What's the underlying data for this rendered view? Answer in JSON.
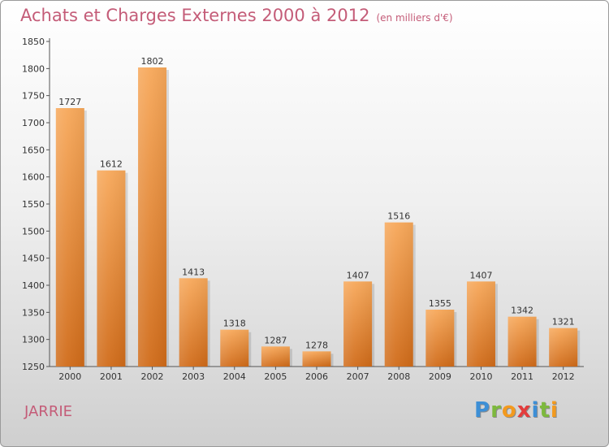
{
  "header": {
    "title": "Achats et Charges Externes 2000 à 2012",
    "subtitle": "(en milliers d'€)"
  },
  "commune": "JARRIE",
  "logo": {
    "text": "Proxiti",
    "letters": [
      {
        "ch": "P",
        "color": "#3d8fd6"
      },
      {
        "ch": "r",
        "color": "#7db93d"
      },
      {
        "ch": "o",
        "color": "#f39a1e"
      },
      {
        "ch": "x",
        "color": "#e33c3c"
      },
      {
        "ch": "i",
        "color": "#3d8fd6"
      },
      {
        "ch": "t",
        "color": "#7db93d"
      },
      {
        "ch": "i",
        "color": "#f39a1e"
      }
    ]
  },
  "colors": {
    "bar_top": "#f7a85a",
    "bar_bottom": "#d06b19",
    "title": "#c45c78"
  },
  "chart_data": {
    "type": "bar",
    "title": "Achats et Charges Externes 2000 à 2012",
    "subtitle": "(en milliers d'€)",
    "categories": [
      "2000",
      "2001",
      "2002",
      "2003",
      "2004",
      "2005",
      "2006",
      "2007",
      "2008",
      "2009",
      "2010",
      "2011",
      "2012"
    ],
    "values": [
      1727,
      1612,
      1802,
      1413,
      1318,
      1287,
      1278,
      1407,
      1516,
      1355,
      1407,
      1342,
      1321
    ],
    "ylim": [
      1250,
      1850
    ],
    "yticks": [
      1250,
      1300,
      1350,
      1400,
      1450,
      1500,
      1550,
      1600,
      1650,
      1700,
      1750,
      1800,
      1850
    ],
    "xlabel": "",
    "ylabel": "",
    "grid": false
  }
}
